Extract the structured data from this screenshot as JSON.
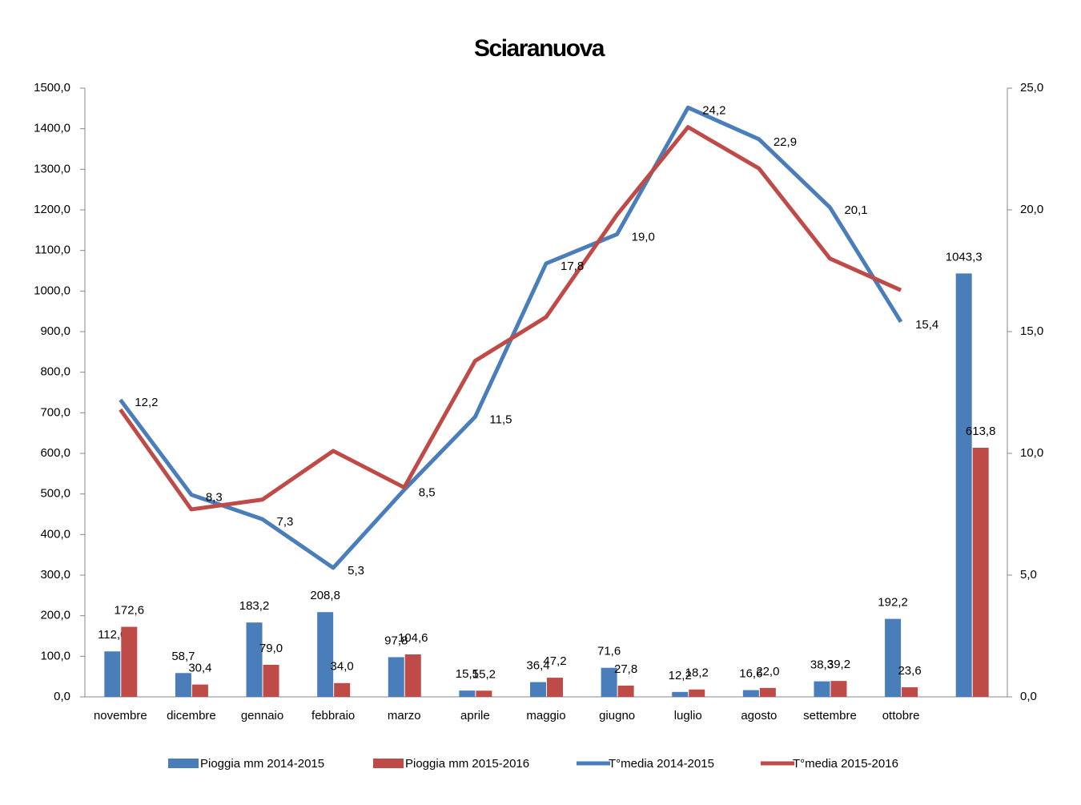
{
  "chart_data": {
    "type": "bar_line",
    "title": "Sciaranuova",
    "categories": [
      "novembre",
      "dicembre",
      "gennaio",
      "febbraio",
      "marzo",
      "aprile",
      "maggio",
      "giugno",
      "luglio",
      "agosto",
      "settembre",
      "ottobre",
      null
    ],
    "series": [
      {
        "name": "Pioggia mm 2014-2015",
        "type": "bar",
        "color": "#4a7ebb",
        "values": [
          112.0,
          58.7,
          183.2,
          208.8,
          97.8,
          15.5,
          36.4,
          71.6,
          12.2,
          16.6,
          38.3,
          192.2,
          1043.3
        ],
        "value_labels": [
          "112,0",
          "58,7",
          "183,2",
          "208,8",
          "97,8",
          "15,5",
          "36,4",
          "71,6",
          "12,2",
          "16,6",
          "38,3",
          "192,2",
          "1043,3"
        ]
      },
      {
        "name": "Pioggia mm 2015-2016",
        "type": "bar",
        "color": "#be4b48",
        "values": [
          172.6,
          30.4,
          79.0,
          34.0,
          104.6,
          15.2,
          47.2,
          27.8,
          18.2,
          22.0,
          39.2,
          23.6,
          613.8
        ],
        "value_labels": [
          "172,6",
          "30,4",
          "79,0",
          "34,0",
          "104,6",
          "15,2",
          "47,2",
          "27,8",
          "18,2",
          "22,0",
          "39,2",
          "23,6",
          "613,8"
        ]
      },
      {
        "name": "T°media 2014-2015",
        "type": "line",
        "axis": "y2",
        "color": "#4a7ebb",
        "values": [
          12.2,
          8.3,
          7.3,
          5.3,
          8.5,
          11.5,
          17.8,
          19.0,
          24.2,
          22.9,
          20.1,
          15.4,
          null
        ],
        "value_labels": [
          "12,2",
          "8,3",
          "7,3",
          "5,3",
          "8,5",
          "11,5",
          "17,8",
          "19,0",
          "24,2",
          "22,9",
          "20,1",
          "15,4",
          null
        ]
      },
      {
        "name": "T°media 2015-2016",
        "type": "line",
        "axis": "y2",
        "color": "#be4b48",
        "values": [
          11.8,
          7.7,
          8.1,
          10.1,
          8.6,
          13.8,
          15.6,
          19.8,
          23.4,
          21.7,
          18.0,
          16.7,
          null
        ]
      }
    ],
    "ylim": [
      0,
      1500
    ],
    "yticks": [
      {
        "value": 0,
        "label": "0,0"
      },
      {
        "value": 100,
        "label": "100,0"
      },
      {
        "value": 200,
        "label": "200,0"
      },
      {
        "value": 300,
        "label": "300,0"
      },
      {
        "value": 400,
        "label": "400,0"
      },
      {
        "value": 500,
        "label": "500,0"
      },
      {
        "value": 600,
        "label": "600,0"
      },
      {
        "value": 700,
        "label": "700,0"
      },
      {
        "value": 800,
        "label": "800,0"
      },
      {
        "value": 900,
        "label": "900,0"
      },
      {
        "value": 1000,
        "label": "1000,0"
      },
      {
        "value": 1100,
        "label": "1100,0"
      },
      {
        "value": 1200,
        "label": "1200,0"
      },
      {
        "value": 1300,
        "label": "1300,0"
      },
      {
        "value": 1400,
        "label": "1400,0"
      },
      {
        "value": 1500,
        "label": "1500,0"
      }
    ],
    "y2lim": [
      0,
      25
    ],
    "y2ticks": [
      {
        "value": 0,
        "label": "0,0"
      },
      {
        "value": 5,
        "label": "5,0"
      },
      {
        "value": 10,
        "label": "10,0"
      },
      {
        "value": 15,
        "label": "15,0"
      },
      {
        "value": 20,
        "label": "20,0"
      },
      {
        "value": 25,
        "label": "25,0"
      }
    ],
    "legend": "bottom"
  }
}
